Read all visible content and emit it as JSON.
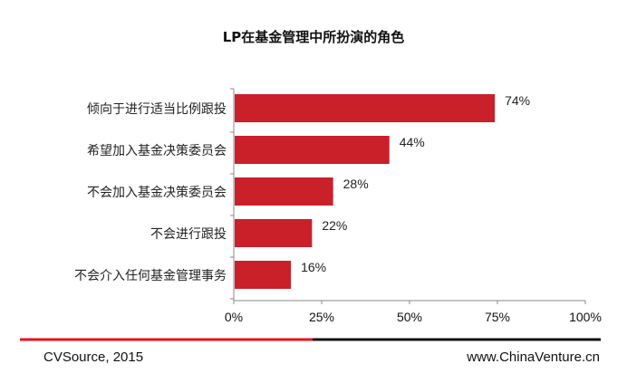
{
  "chart_data": {
    "type": "bar",
    "orientation": "horizontal",
    "title": "LP在基金管理中所扮演的角色",
    "categories": [
      "倾向于进行适当比例跟投",
      "希望加入基金决策委员会",
      "不会加入基金决策委员会",
      "不会进行跟投",
      "不会介入任何基金管理事务"
    ],
    "values": [
      74,
      44,
      28,
      22,
      16
    ],
    "data_labels": [
      "74%",
      "44%",
      "28%",
      "22%",
      "16%"
    ],
    "xlim": [
      0,
      100
    ],
    "xticks": [
      0,
      25,
      50,
      75,
      100
    ],
    "xtick_labels": [
      "0%",
      "25%",
      "50%",
      "75%",
      "100%"
    ],
    "xlabel": "",
    "ylabel": "",
    "grid": false,
    "bar_color": "#c9202a"
  },
  "footer": {
    "source": "CVSource, 2015",
    "website": "www.ChinaVenture.cn"
  }
}
